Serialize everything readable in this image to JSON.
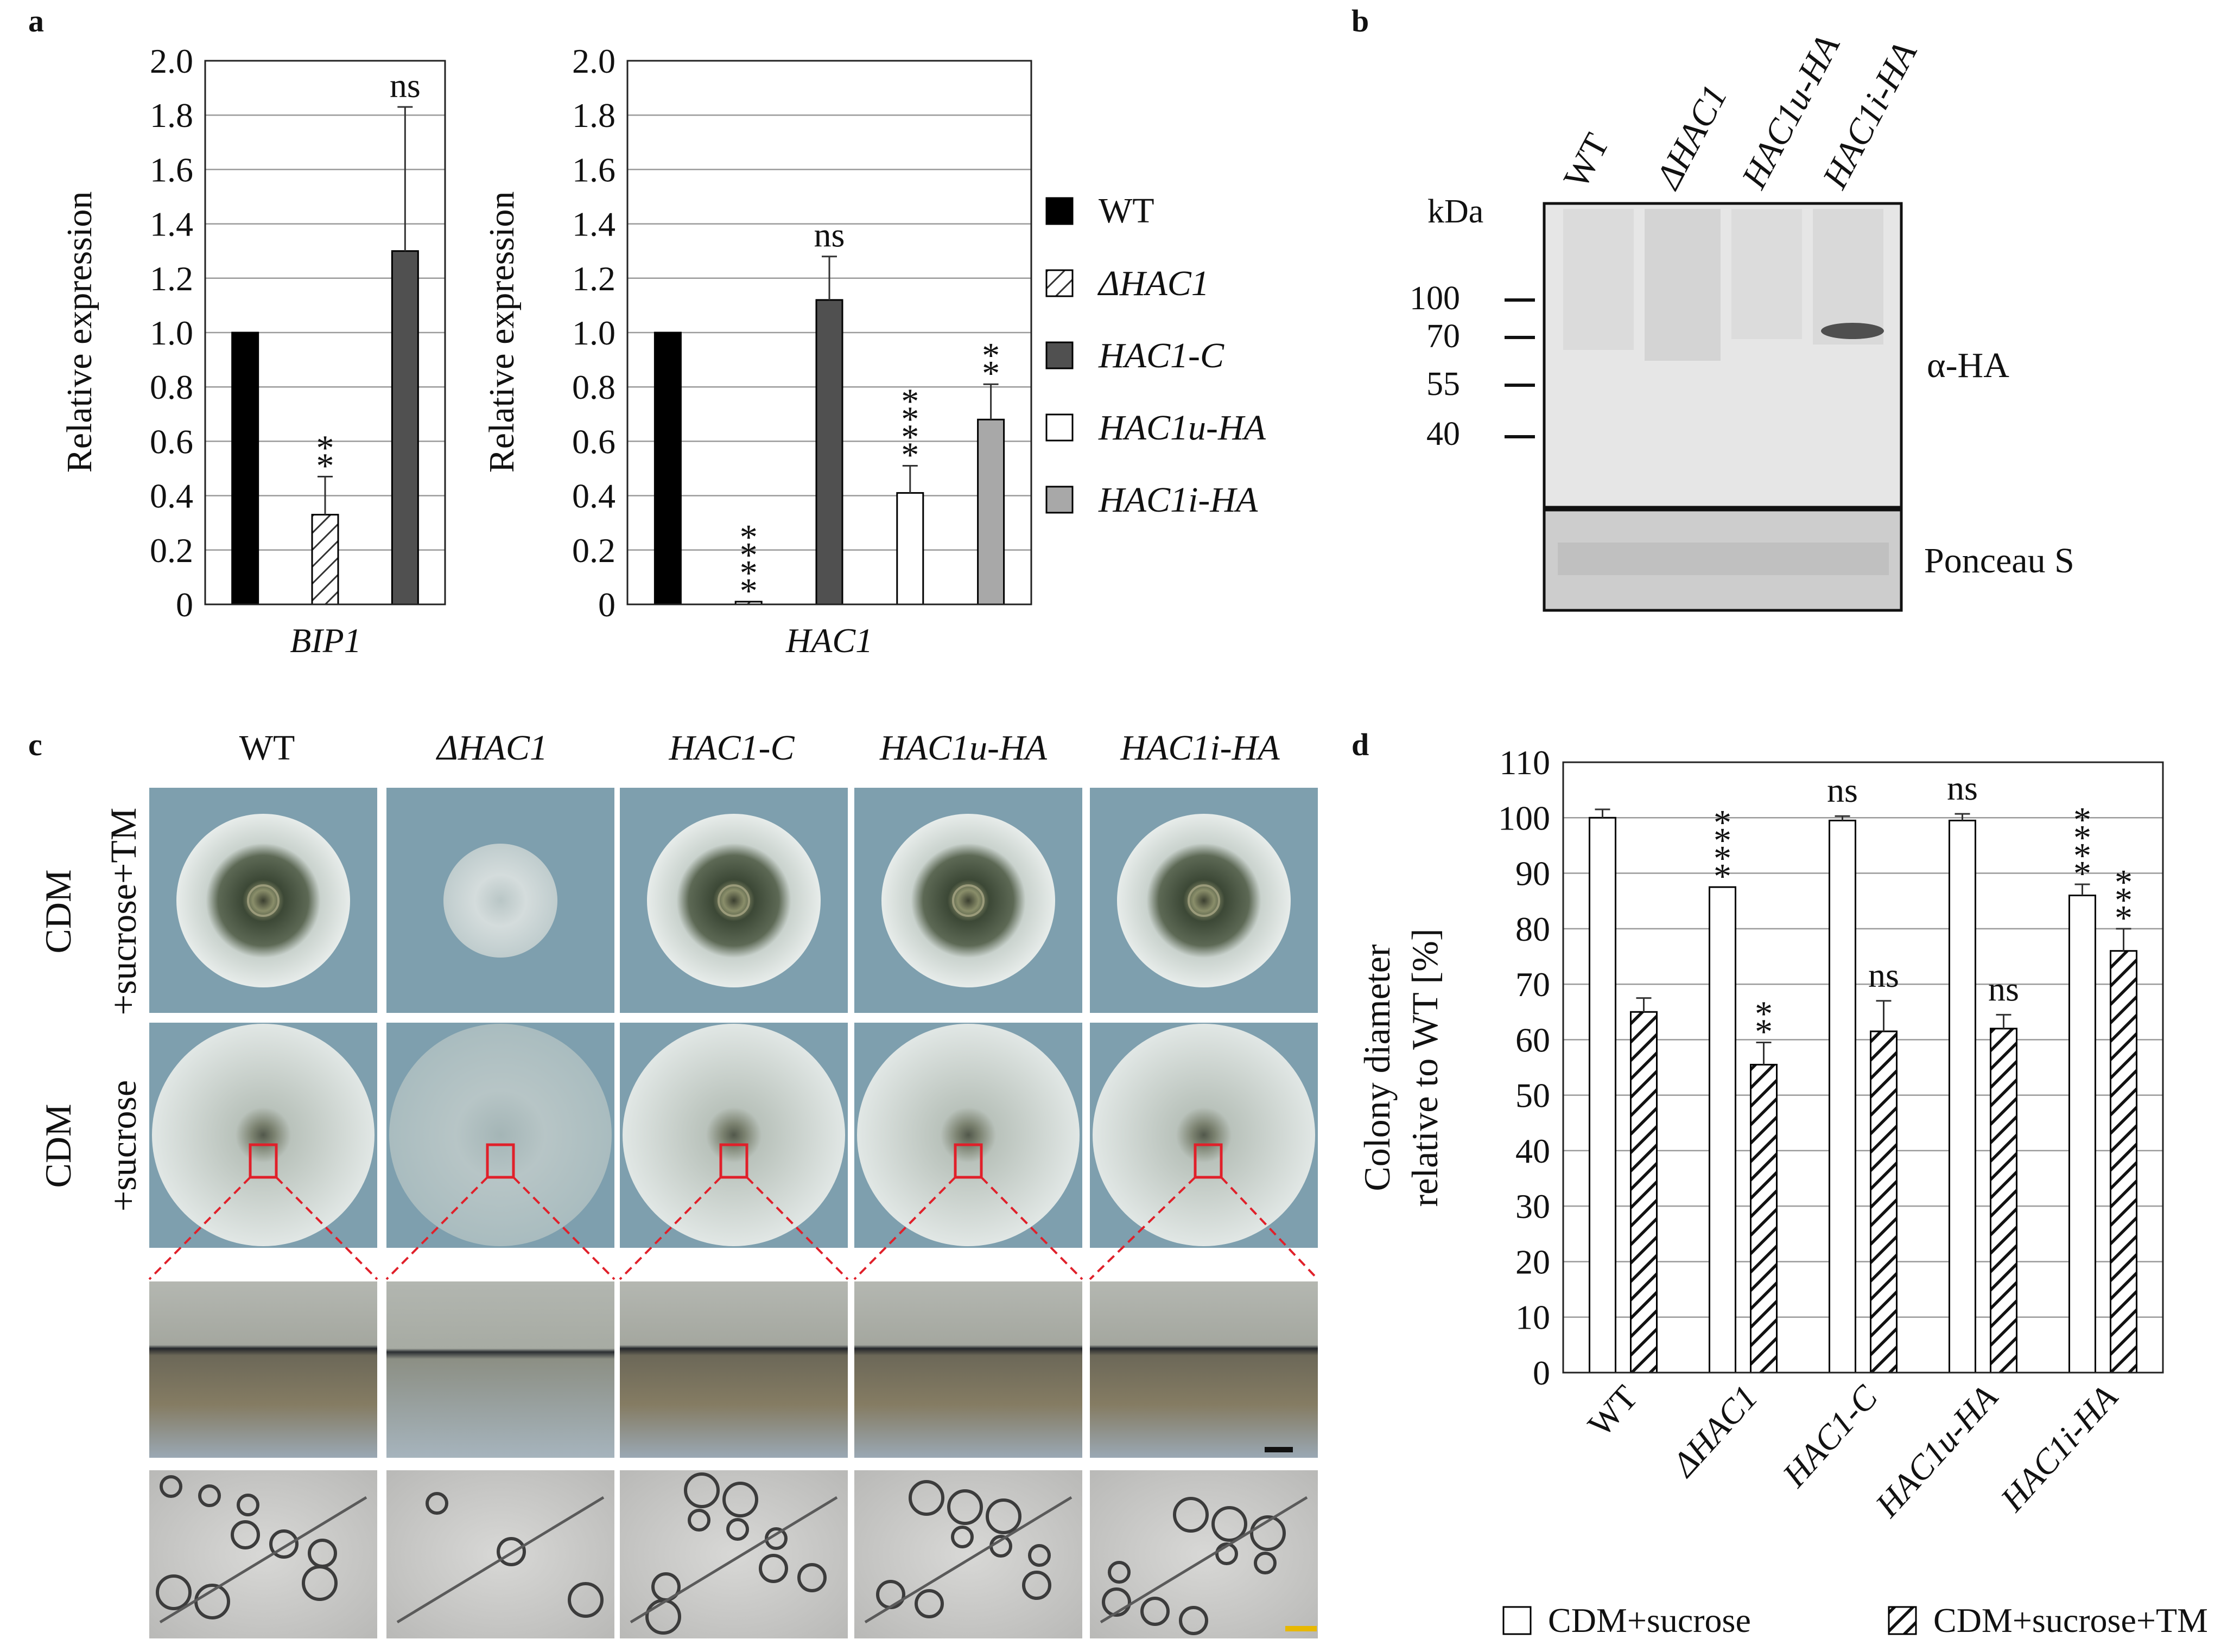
{
  "panel_labels": [
    "a",
    "b",
    "c",
    "d"
  ],
  "colors": {
    "WT": "#000000",
    "dHAC1_hatch": "#333333",
    "HAC1_C": "#505050",
    "HAC1u_HA": "#ffffff",
    "HAC1i_HA": "#a8a8a8",
    "plate_bg": "#7e9fae",
    "colony_outer": "#dfe6e6",
    "colony_dark": "#2f3a2c",
    "highlight_box": "#e0202a"
  },
  "chart_data": [
    {
      "id": "a_bip1",
      "type": "bar",
      "ylabel": "Relative expression",
      "xlabel": "BIP1",
      "ylim": [
        0,
        2.0
      ],
      "yticks": [
        "0",
        "0.2",
        "0.4",
        "0.6",
        "0.8",
        "1.0",
        "1.2",
        "1.4",
        "1.6",
        "1.8",
        "2.0"
      ],
      "grid": true,
      "series": [
        {
          "name": "WT",
          "value": 1.0,
          "error": null,
          "annotation": ""
        },
        {
          "name": "ΔHAC1",
          "value": 0.33,
          "error": 0.14,
          "annotation": "**"
        },
        {
          "name": "HAC1-C",
          "value": 1.3,
          "error": 0.53,
          "annotation": "ns"
        }
      ]
    },
    {
      "id": "a_hac1",
      "type": "bar",
      "ylabel": "Relative expression",
      "xlabel": "HAC1",
      "ylim": [
        0,
        2.0
      ],
      "yticks": [
        "0",
        "0.2",
        "0.4",
        "0.6",
        "0.8",
        "1.0",
        "1.2",
        "1.4",
        "1.6",
        "1.8",
        "2.0"
      ],
      "grid": true,
      "series": [
        {
          "name": "WT",
          "value": 1.0,
          "error": null,
          "annotation": ""
        },
        {
          "name": "ΔHAC1",
          "value": 0.01,
          "error": null,
          "annotation": "****"
        },
        {
          "name": "HAC1-C",
          "value": 1.12,
          "error": 0.16,
          "annotation": "ns"
        },
        {
          "name": "HAC1u-HA",
          "value": 0.41,
          "error": 0.1,
          "annotation": "****"
        },
        {
          "name": "HAC1i-HA",
          "value": 0.68,
          "error": 0.13,
          "annotation": "**"
        }
      ],
      "legend": [
        "WT",
        "ΔHAC1",
        "HAC1-C",
        "HAC1u-HA",
        "HAC1i-HA"
      ]
    },
    {
      "id": "d_colony",
      "type": "bar",
      "ylabel_line1": "Colony diameter",
      "ylabel_line2": "relative to WT [%]",
      "ylim": [
        0,
        110
      ],
      "yticks": [
        "0",
        "10",
        "20",
        "30",
        "40",
        "50",
        "60",
        "70",
        "80",
        "90",
        "100",
        "110"
      ],
      "grid": true,
      "categories": [
        "WT",
        "ΔHAC1",
        "HAC1-C",
        "HAC1u-HA",
        "HAC1i-HA"
      ],
      "series": [
        {
          "name": "CDM+sucrose",
          "values": [
            100,
            87.5,
            99.5,
            99.5,
            86
          ],
          "errors": [
            1.5,
            0,
            0.8,
            1.2,
            2.0
          ],
          "annotations": [
            "",
            "****",
            "ns",
            "ns",
            "****"
          ]
        },
        {
          "name": "CDM+sucrose+TM",
          "values": [
            65,
            55.5,
            61.5,
            62,
            76
          ],
          "errors": [
            2.5,
            4.0,
            5.5,
            2.5,
            4.0
          ],
          "annotations": [
            "",
            "**",
            "ns",
            "ns",
            "***"
          ]
        }
      ],
      "legend": [
        "CDM+sucrose",
        "CDM+sucrose+TM"
      ]
    }
  ],
  "western": {
    "lanes": [
      "WT",
      "ΔHAC1",
      "HAC1u-HA",
      "HAC1i-HA"
    ],
    "kda_label": "kDa",
    "markers": [
      "100",
      "70",
      "55",
      "40"
    ],
    "antibody_label": "α-HA",
    "loading_label": "Ponceau S"
  },
  "plates": {
    "strains": [
      "WT",
      "ΔHAC1",
      "HAC1-C",
      "HAC1u-HA",
      "HAC1i-HA"
    ],
    "rows": [
      {
        "line1": "CDM",
        "line2": "+sucrose+TM"
      },
      {
        "line1": "CDM",
        "line2": "+sucrose"
      }
    ]
  }
}
